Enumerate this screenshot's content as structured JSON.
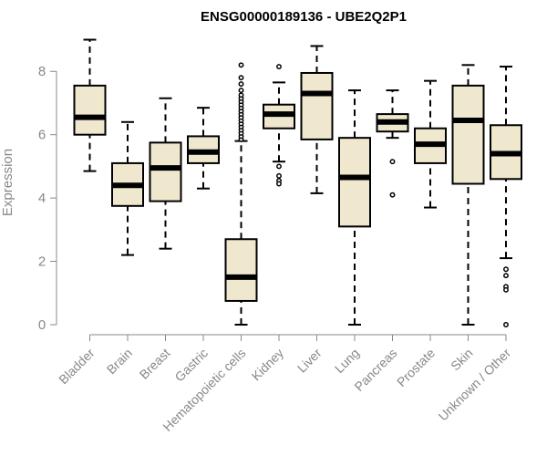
{
  "chart_data": {
    "type": "boxplot",
    "title": "ENSG00000189136 - UBE2Q2P1",
    "ylabel": "Expression",
    "xlabel": "",
    "ylim": [
      0,
      9
    ],
    "yticks": [
      "0",
      "2",
      "4",
      "6",
      "8"
    ],
    "colors": {
      "box_fill": "#efe8cf",
      "stroke": "#000000",
      "axis_text": "#888888"
    },
    "categories": [
      "Bladder",
      "Brain",
      "Breast",
      "Gastric",
      "Hematopoietic cells",
      "Kidney",
      "Liver",
      "Lung",
      "Pancreas",
      "Prostate",
      "Skin",
      "Unknown / Other"
    ],
    "boxes": [
      {
        "name": "Bladder",
        "whisker_low": 4.85,
        "q1": 6.0,
        "median": 6.55,
        "q3": 7.55,
        "whisker_high": 9.0,
        "outliers": []
      },
      {
        "name": "Brain",
        "whisker_low": 2.2,
        "q1": 3.75,
        "median": 4.4,
        "q3": 5.1,
        "whisker_high": 6.4,
        "outliers": []
      },
      {
        "name": "Breast",
        "whisker_low": 2.4,
        "q1": 3.9,
        "median": 4.95,
        "q3": 5.75,
        "whisker_high": 7.15,
        "outliers": []
      },
      {
        "name": "Gastric",
        "whisker_low": 4.3,
        "q1": 5.1,
        "median": 5.45,
        "q3": 5.95,
        "whisker_high": 6.85,
        "outliers": []
      },
      {
        "name": "Hematopoietic cells",
        "whisker_low": 0.0,
        "q1": 0.75,
        "median": 1.5,
        "q3": 2.7,
        "whisker_high": 5.8,
        "outliers": [
          5.85,
          5.95,
          6.05,
          6.15,
          6.25,
          6.35,
          6.45,
          6.55,
          6.65,
          6.75,
          6.85,
          6.95,
          7.05,
          7.15,
          7.25,
          7.4,
          7.6,
          7.8,
          8.2
        ]
      },
      {
        "name": "Kidney",
        "whisker_low": 5.15,
        "q1": 6.2,
        "median": 6.65,
        "q3": 6.95,
        "whisker_high": 7.65,
        "outliers": [
          8.15,
          5.0,
          4.7,
          4.55,
          4.45
        ]
      },
      {
        "name": "Liver",
        "whisker_low": 4.15,
        "q1": 5.85,
        "median": 7.3,
        "q3": 7.95,
        "whisker_high": 8.8,
        "outliers": []
      },
      {
        "name": "Lung",
        "whisker_low": 0.0,
        "q1": 3.1,
        "median": 4.65,
        "q3": 5.9,
        "whisker_high": 7.4,
        "outliers": []
      },
      {
        "name": "Pancreas",
        "whisker_low": 5.9,
        "q1": 6.1,
        "median": 6.4,
        "q3": 6.65,
        "whisker_high": 7.4,
        "outliers": [
          5.15,
          4.1
        ]
      },
      {
        "name": "Prostate",
        "whisker_low": 3.7,
        "q1": 5.1,
        "median": 5.7,
        "q3": 6.2,
        "whisker_high": 7.7,
        "outliers": []
      },
      {
        "name": "Skin",
        "whisker_low": 0.0,
        "q1": 4.45,
        "median": 6.45,
        "q3": 7.55,
        "whisker_high": 8.2,
        "outliers": []
      },
      {
        "name": "Unknown / Other",
        "whisker_low": 2.1,
        "q1": 4.6,
        "median": 5.4,
        "q3": 6.3,
        "whisker_high": 8.15,
        "outliers": [
          1.75,
          1.55,
          1.2,
          1.1,
          0.0
        ]
      }
    ]
  }
}
